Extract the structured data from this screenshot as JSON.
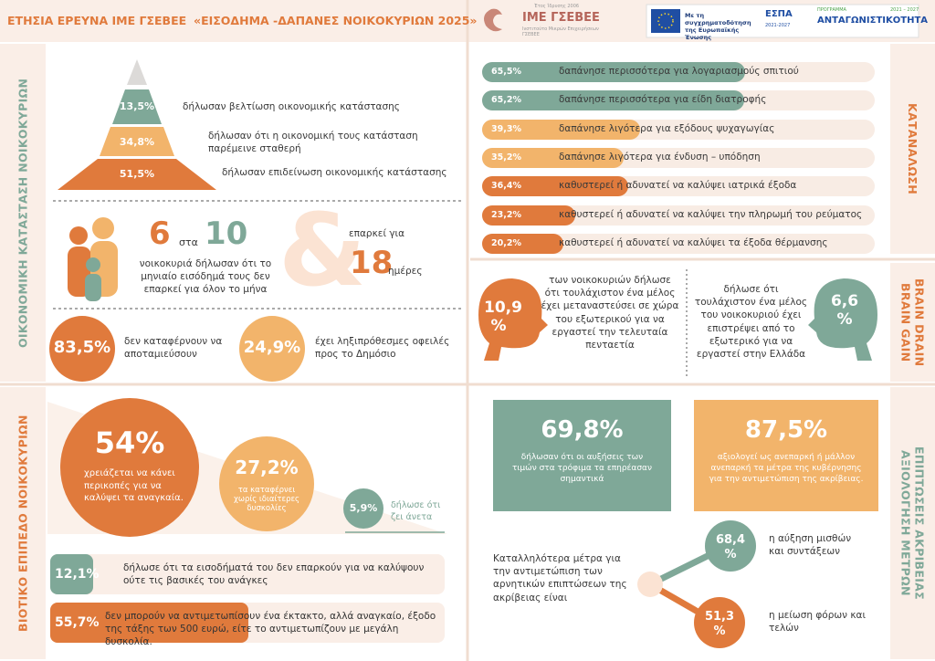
{
  "header": {
    "title": "ΕΤΗΣΙΑ ΕΡΕΥΝΑ ΙΜΕ ΓΣΕΒΕΕ",
    "subtitle": "«ΕΙΣΟΔΗΜΑ -ΔΑΠΑΝΕΣ ΝΟΙΚΟΚΥΡΙΩΝ 2025»",
    "logo_year": "Έτος Ίδρυσης 2006",
    "logo_name": "ΙΜΕ ΓΣΕΒΕΕ",
    "logo_caption": "Ινστιτούτο Μικρών Επιχειρήσεων ΓΣΕΒΕΕ",
    "eu_text": "Με τη συγχρηματοδότηση της Ευρωπαϊκής Ένωσης",
    "espa": "ΕΣΠΑ",
    "espa_years": "2021-2027",
    "program_label": "ΠΡΟΓΡΑΜΜΑ",
    "program_years": "2021 – 2027",
    "program_name": "ΑΝΤΑΓΩΝΙΣΤΙΚΟΤΗΤΑ"
  },
  "economic": {
    "side_label": "ΟΙΚΟΝΟΜΙΚΗ ΚΑΤΑΣΤΑΣΗ ΝΟΙΚΟΚΥΡΙΩΝ",
    "pyramid": [
      {
        "value": "13,5%",
        "text": "δήλωσαν βελτίωση οικονομικής κατάστασης"
      },
      {
        "value": "34,8%",
        "text": "δήλωσαν ότι η οικονομική τους κατάσταση παρέμεινε σταθερή"
      },
      {
        "value": "51,5%",
        "text": "δήλωσαν επιδείνωση οικονομικής κατάστασης"
      }
    ],
    "ratio": {
      "numerator": "6",
      "word": "στα",
      "denominator": "10",
      "text": "νοικοκυριά δήλωσαν ότι το μηνιαίο εισόδημά τους δεν επαρκεί για όλον το μήνα",
      "amp": "&",
      "days_intro": "επαρκεί για",
      "days": "18",
      "days_unit": "ημέρες"
    },
    "circles": [
      {
        "value": "83,5%",
        "text": "δεν καταφέρνουν να αποταμιεύσουν"
      },
      {
        "value": "24,9%",
        "text": "έχει ληξιπρόθεσμες οφειλές προς το Δημόσιο"
      }
    ]
  },
  "consumption": {
    "side_label": "ΚΑΤΑΝΑΛΩΣΗ",
    "rows": [
      {
        "value": 65.5,
        "label": "65,5%",
        "text": "δαπάνησε περισσότερα για λογαριασμούς σπιτιού"
      },
      {
        "value": 65.2,
        "label": "65,2%",
        "text": "δαπάνησε περισσότερα για είδη διατροφής"
      },
      {
        "value": 39.3,
        "label": "39,3%",
        "text": "δαπάνησε λιγότερα για εξόδους ψυχαγωγίας"
      },
      {
        "value": 35.2,
        "label": "35,2%",
        "text": "δαπάνησε λιγότερα για ένδυση – υπόδηση"
      },
      {
        "value": 36.4,
        "label": "36,4%",
        "text": "καθυστερεί ή αδυνατεί να καλύψει ιατρικά έξοδα"
      },
      {
        "value": 23.2,
        "label": "23,2%",
        "text": "καθυστερεί ή αδυνατεί να καλύψει την πληρωμή του ρεύματος"
      },
      {
        "value": 20.2,
        "label": "20,2%",
        "text": "καθυστερεί ή αδυνατεί να καλύψει τα έξοδα θέρμανσης"
      }
    ]
  },
  "migration": {
    "side_label_1": "BRAIN DRAIN",
    "side_label_2": "BRAIN GAIN",
    "drain": {
      "value": "10,9 %",
      "text": "των νοικοκυριών δήλωσε ότι τουλάχιστον ένα μέλος έχει μεταναστεύσει σε χώρα του εξωτερικού για να εργαστεί την τελευταία πενταετία"
    },
    "gain": {
      "value": "6,6 %",
      "text": "δήλωσε ότι τουλάχιστον ένα μέλος του νοικοκυριού έχει επιστρέψει από το εξωτερικό για να εργαστεί στην Ελλάδα"
    }
  },
  "living": {
    "side_label": "ΒΙΟΤΙΚΟ ΕΠΙΠΕΔΟ ΝΟΙΚΟΚΥΡΙΩΝ",
    "circles": [
      {
        "value": "54%",
        "text": "χρειάζεται να κάνει περικοπές για να καλύψει τα αναγκαία."
      },
      {
        "value": "27,2%",
        "text": "τα καταφέρνει χωρίς ιδιαίτερες δυσκολίες"
      },
      {
        "value": "5,9%",
        "text": "δήλωσε ότι ζει άνετα"
      }
    ],
    "bars": [
      {
        "value": 12.1,
        "label": "12,1%",
        "text": "δήλωσε ότι τα εισοδήματά του δεν επαρκούν για να καλύψουν ούτε τις βασικές του ανάγκες"
      },
      {
        "value": 55.7,
        "label": "55,7%",
        "text": "δεν μπορούν να αντιμετωπίσουν ένα έκτακτο, αλλά αναγκαίο, έξοδο της τάξης των 500 ευρώ, είτε το αντιμετωπίζουν με μεγάλη δυσκολία."
      }
    ]
  },
  "impact": {
    "side_label_1": "ΕΠΙΠΤΩΣΕΙΣ ΑΚΡΙΒΕΙΑΣ",
    "side_label_2": "ΑΞΙΟΛΟΓΗΣΗ ΜΕΤΡΩΝ",
    "boxes": [
      {
        "value": "69,8%",
        "text": "δήλωσαν ότι οι αυξήσεις των τιμών στα τρόφιμα τα επηρέασαν σημαντικά"
      },
      {
        "value": "87,5%",
        "text": "αξιολογεί ως ανεπαρκή ή μάλλον ανεπαρκή τα μέτρα της κυβέρνησης για την αντιμετώπιση της ακρίβειας."
      }
    ],
    "question": "Καταλληλότερα μέτρα για την αντιμετώπιση των αρνητικών επιπτώσεων της ακρίβειας είναι",
    "options": [
      {
        "value": "68,4 %",
        "text": "η αύξηση μισθών και συντάξεων"
      },
      {
        "value": "51,3 %",
        "text": "η μείωση φόρων και τελών"
      }
    ]
  }
}
